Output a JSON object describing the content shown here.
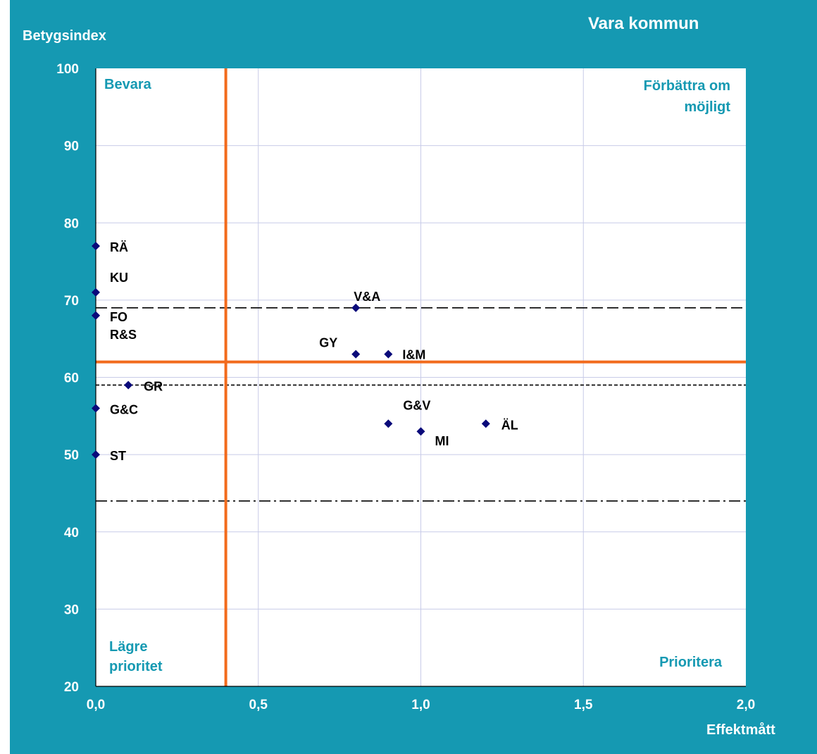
{
  "chart_data": {
    "type": "scatter",
    "title": "Vara kommun",
    "xlabel": "Effektmått",
    "ylabel": "Betygsindex",
    "xlim": [
      0,
      2
    ],
    "ylim": [
      20,
      100
    ],
    "x_ticks": [
      "0,0",
      "0,5",
      "1,0",
      "1,5",
      "2,0"
    ],
    "x_tick_values": [
      0,
      0.5,
      1.0,
      1.5,
      2.0
    ],
    "y_ticks": [
      "20",
      "30",
      "40",
      "50",
      "60",
      "70",
      "80",
      "90",
      "100"
    ],
    "y_tick_values": [
      20,
      30,
      40,
      50,
      60,
      70,
      80,
      90,
      100
    ],
    "grid": true,
    "quadrants": {
      "top_left": "Bevara",
      "top_right": "Förbättra om möjligt",
      "bottom_left": "Lägre prioritet",
      "bottom_right": "Prioritera"
    },
    "divider_x": 0.4,
    "divider_y": 62,
    "reference_lines": [
      {
        "y": 69,
        "style": "long-dash"
      },
      {
        "y": 59,
        "style": "short-dash"
      },
      {
        "y": 44,
        "style": "dash-dot"
      }
    ],
    "points": [
      {
        "label": "RÄ",
        "x": 0.0,
        "y": 77
      },
      {
        "label": "KU",
        "x": 0.0,
        "y": 71
      },
      {
        "label": "FO",
        "x": 0.0,
        "y": 68
      },
      {
        "label": "R&S",
        "x": 0.0,
        "y": 68
      },
      {
        "label": "GR",
        "x": 0.1,
        "y": 59
      },
      {
        "label": "G&C",
        "x": 0.0,
        "y": 56
      },
      {
        "label": "ST",
        "x": 0.0,
        "y": 50
      },
      {
        "label": "V&A",
        "x": 0.8,
        "y": 69
      },
      {
        "label": "GY",
        "x": 0.8,
        "y": 63
      },
      {
        "label": "I&M",
        "x": 0.9,
        "y": 63
      },
      {
        "label": "G&V",
        "x": 0.9,
        "y": 54
      },
      {
        "label": "MI",
        "x": 1.0,
        "y": 53
      },
      {
        "label": "ÄL",
        "x": 1.2,
        "y": 54
      }
    ],
    "colors": {
      "background": "#1599b2",
      "plot_area": "#ffffff",
      "grid": "#c8cbe8",
      "divider": "#f26b1d",
      "marker": "#0a0a7a",
      "quadrant_text": "#1599b2",
      "axis_text": "#ffffff"
    }
  }
}
